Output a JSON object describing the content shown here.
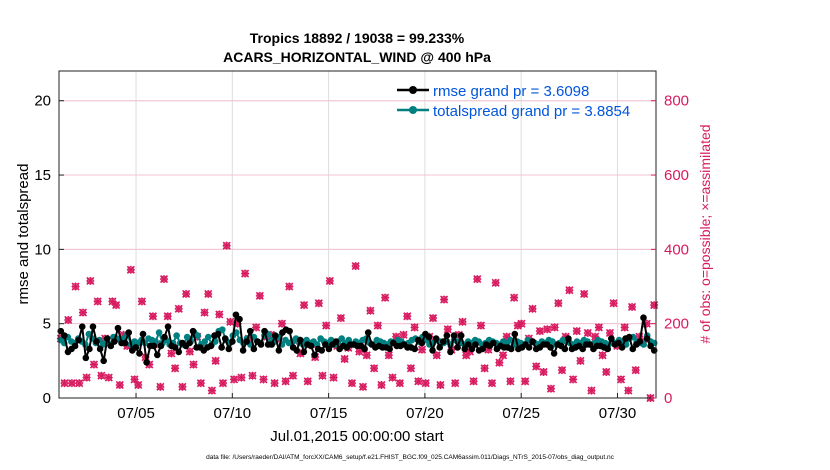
{
  "chart_data": {
    "type": "line",
    "title": "Tropics 18892 / 19038 = 99.233%",
    "subtitle": "ACARS_HORIZONTAL_WIND @ 400 hPa",
    "xlabel": "Jul.01,2015 00:00:00 start",
    "ylabel": "rmse and totalspread",
    "y2label": "# of obs: o=possible; ×=assimilated",
    "footer": "data file: /Users/raeder/DAI/ATM_forcXX/CAM6_setup/f.e21.FHIST_BGC.f09_025.CAM6assim.011/Diags_NTrS_2015-07/obs_diag_output.nc",
    "grid": true,
    "legend_position": "top-right",
    "xlim": [
      1,
      32
    ],
    "ylim": [
      0,
      22
    ],
    "y2lim": [
      0,
      880
    ],
    "x_ticks": [
      5,
      10,
      15,
      20,
      25,
      30
    ],
    "x_tick_labels": [
      "07/05",
      "07/10",
      "07/15",
      "07/20",
      "07/25",
      "07/30"
    ],
    "y_ticks": [
      0,
      5,
      10,
      15,
      20
    ],
    "y_tick_labels": [
      "0",
      "5",
      "10",
      "15",
      "20"
    ],
    "y2_ticks": [
      0,
      200,
      400,
      600,
      800
    ],
    "y2_tick_labels": [
      "0",
      "200",
      "400",
      "600",
      "800"
    ],
    "colors": {
      "rmse": "#000000",
      "spread": "#008080",
      "obs": "#d81b60",
      "legend_text": "#0055dd"
    },
    "series": [
      {
        "name": "rmse grand pr = 3.6098",
        "color": "#000000",
        "axis": "left",
        "values": [
          4.5,
          4.2,
          3.1,
          3.3,
          3.5,
          3.9,
          4.8,
          2.7,
          3.3,
          4.8,
          3.8,
          3.3,
          2.5,
          4.0,
          3.5,
          3.8,
          4.7,
          3.7,
          3.7,
          4.4,
          3.2,
          3.4,
          3.0,
          4.3,
          2.4,
          3.5,
          3.5,
          2.9,
          3.5,
          4.1,
          4.8,
          3.5,
          3.4,
          3.1,
          3.7,
          3.5,
          3.7,
          4.5,
          3.4,
          3.4,
          3.2,
          3.4,
          3.5,
          4.2,
          4.3,
          3.4,
          4.0,
          3.3,
          3.8,
          5.6,
          5.3,
          3.2,
          3.8,
          4.5,
          3.3,
          3.8,
          3.6,
          4.5,
          3.6,
          3.6,
          4.2,
          3.2,
          4.4,
          4.6,
          4.5,
          3.4,
          3.2,
          3.9,
          3.1,
          3.6,
          3.5,
          2.9,
          3.3,
          3.2,
          3.6,
          3.3,
          3.6,
          3.8,
          3.3,
          3.5,
          3.4,
          3.6,
          3.6,
          3.5,
          3.5,
          3.3,
          4.4,
          3.6,
          3.4,
          3.5,
          3.4,
          3.4,
          3.3,
          3.7,
          3.5,
          3.5,
          3.6,
          3.4,
          3.4,
          3.3,
          3.9,
          3.7,
          4.3,
          4.1,
          3.2,
          4.0,
          3.4,
          3.8,
          4.2,
          3.1,
          4.2,
          3.4,
          4.2,
          3.3,
          3.6,
          3.3,
          3.6,
          3.2,
          3.3,
          3.6,
          3.5,
          3.7,
          3.3,
          3.5,
          3.4,
          3.4,
          3.3,
          4.3,
          3.3,
          3.4,
          3.6,
          3.4,
          3.8,
          3.3,
          3.4,
          3.6,
          3.6,
          3.4,
          3.0,
          3.6,
          3.5,
          3.3,
          4.0,
          3.3,
          3.4,
          3.5,
          3.3,
          3.6,
          3.6,
          3.3,
          3.5,
          3.5,
          3.4,
          3.3,
          4.0,
          3.6,
          3.7,
          3.4,
          4.0,
          4.1,
          3.3,
          3.6,
          3.8,
          5.4,
          4.0,
          3.5,
          3.2
        ]
      },
      {
        "name": "totalspread grand pr = 3.8854",
        "color": "#008080",
        "axis": "left",
        "values": [
          3.9,
          3.7,
          4.1,
          3.8,
          3.7,
          4.0,
          3.8,
          3.6,
          4.3,
          4.0,
          3.7,
          3.9,
          3.6,
          3.7,
          3.6,
          4.1,
          4.0,
          3.9,
          4.0,
          4.3,
          3.6,
          3.8,
          3.7,
          3.9,
          3.7,
          4.0,
          3.9,
          3.8,
          4.4,
          3.7,
          3.9,
          3.6,
          3.7,
          4.2,
          3.7,
          3.6,
          4.1,
          3.8,
          4.4,
          4.2,
          3.6,
          3.8,
          4.1,
          3.6,
          3.8,
          4.5,
          4.6,
          3.9,
          3.7,
          4.2,
          4.4,
          3.9,
          3.7,
          4.0,
          3.6,
          4.1,
          3.8,
          3.7,
          4.2,
          4.3,
          3.9,
          3.8,
          4.1,
          3.6,
          3.9,
          3.7,
          3.8,
          4.0,
          3.7,
          3.6,
          3.9,
          3.7,
          3.8,
          3.6,
          4.0,
          3.8,
          3.7,
          3.9,
          3.6,
          3.8,
          4.0,
          3.7,
          3.9,
          3.6,
          3.8,
          3.7,
          3.9,
          4.0,
          3.7,
          3.6,
          3.9,
          3.8,
          3.7,
          3.6,
          3.8,
          3.7,
          3.9,
          3.8,
          3.6,
          3.7,
          3.9,
          4.0,
          3.8,
          4.1,
          3.9,
          3.6,
          3.7,
          3.9,
          3.8,
          3.7,
          3.8,
          3.6,
          3.9,
          3.8,
          3.7,
          3.6,
          3.8,
          3.7,
          3.9,
          3.8,
          3.6,
          3.7,
          3.9,
          3.8,
          3.7,
          3.6,
          3.8,
          3.7,
          3.9,
          3.6,
          3.8,
          3.7,
          3.6,
          3.9,
          3.8,
          3.7,
          3.6,
          3.8,
          3.7,
          3.9,
          3.8,
          3.6,
          3.7,
          3.9,
          3.8,
          3.7,
          3.6,
          3.8,
          3.7,
          3.9,
          3.8,
          3.6,
          3.7,
          3.9,
          3.8,
          3.7,
          3.6,
          3.8,
          3.7,
          3.9,
          3.8,
          3.6,
          4.0,
          4.1,
          3.8,
          3.7,
          3.6,
          4.2,
          3.8,
          3.7
        ]
      },
      {
        "name": "obs possible/assimilated",
        "color": "#d81b60",
        "axis": "right",
        "marker": "o+x",
        "values": [
          160,
          40,
          210,
          40,
          300,
          40,
          230,
          55,
          315,
          90,
          260,
          60,
          160,
          55,
          260,
          250,
          35,
          170,
          140,
          345,
          50,
          35,
          260,
          110,
          90,
          220,
          145,
          30,
          320,
          220,
          120,
          80,
          240,
          30,
          280,
          125,
          90,
          165,
          40,
          230,
          280,
          20,
          100,
          225,
          40,
          410,
          205,
          50,
          200,
          55,
          335,
          160,
          60,
          190,
          275,
          50,
          165,
          170,
          40,
          160,
          200,
          45,
          300,
          60,
          155,
          120,
          250,
          45,
          145,
          110,
          255,
          60,
          195,
          315,
          55,
          140,
          215,
          105,
          135,
          40,
          355,
          125,
          30,
          115,
          235,
          80,
          195,
          35,
          270,
          115,
          55,
          165,
          40,
          170,
          220,
          80,
          190,
          45,
          130,
          40,
          165,
          215,
          115,
          35,
          265,
          185,
          130,
          40,
          170,
          205,
          115,
          125,
          45,
          320,
          195,
          80,
          130,
          40,
          310,
          95,
          115,
          165,
          45,
          270,
          195,
          200,
          45,
          160,
          240,
          85,
          180,
          70,
          185,
          25,
          190,
          255,
          75,
          165,
          290,
          50,
          180,
          100,
          280,
          175,
          20,
          165,
          190,
          115,
          70,
          175,
          255,
          140,
          50,
          190,
          20,
          245,
          75,
          165,
          150,
          200,
          0,
          250
        ]
      }
    ]
  }
}
